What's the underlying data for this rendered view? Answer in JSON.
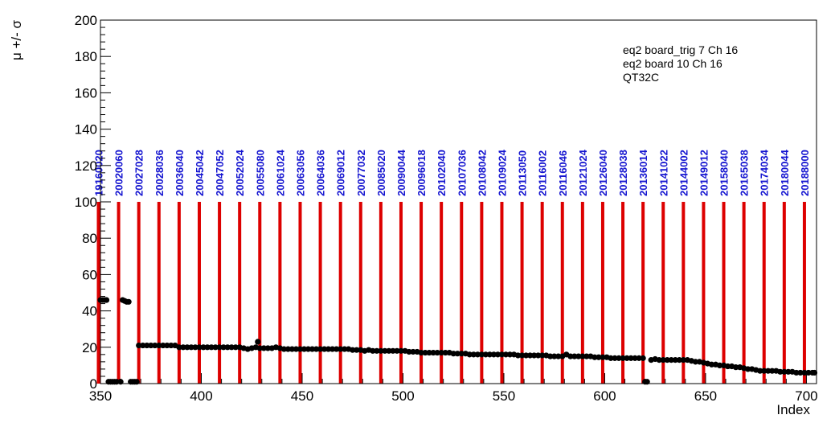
{
  "chart_data": {
    "type": "scatter",
    "title": "",
    "xlabel": "Index",
    "ylabel": "μ +/- σ",
    "xlim": [
      350,
      705
    ],
    "ylim": [
      0,
      200
    ],
    "x_ticks": [
      350,
      400,
      450,
      500,
      550,
      600,
      650,
      700
    ],
    "y_ticks": [
      0,
      20,
      40,
      60,
      80,
      100,
      120,
      140,
      160,
      180,
      200
    ],
    "grid": false,
    "legend_position": "top-right",
    "annotations": [
      "eq2 board_trig 7 Ch 16",
      "eq2 board 10 Ch 16",
      "QT32C"
    ],
    "colors": {
      "markers": "#000000",
      "run_lines": "#dd0000",
      "run_labels": "#1414d0"
    },
    "run_markers": {
      "line_top": 100,
      "runs": [
        {
          "x": 349,
          "label": "19160020"
        },
        {
          "x": 359,
          "label": "20020060"
        },
        {
          "x": 369,
          "label": "20027028"
        },
        {
          "x": 379,
          "label": "20028036"
        },
        {
          "x": 389,
          "label": "20036040"
        },
        {
          "x": 399,
          "label": "20045042"
        },
        {
          "x": 409,
          "label": "20047052"
        },
        {
          "x": 419,
          "label": "20052024"
        },
        {
          "x": 429,
          "label": "20055080"
        },
        {
          "x": 439,
          "label": "20061024"
        },
        {
          "x": 449,
          "label": "20063056"
        },
        {
          "x": 459,
          "label": "20064036"
        },
        {
          "x": 469,
          "label": "20069012"
        },
        {
          "x": 479,
          "label": "20077032"
        },
        {
          "x": 489,
          "label": "20085020"
        },
        {
          "x": 499,
          "label": "20090044"
        },
        {
          "x": 509,
          "label": "20096018"
        },
        {
          "x": 519,
          "label": "20102040"
        },
        {
          "x": 529,
          "label": "20107036"
        },
        {
          "x": 539,
          "label": "20108042"
        },
        {
          "x": 549,
          "label": "20109024"
        },
        {
          "x": 559,
          "label": "20113050"
        },
        {
          "x": 569,
          "label": "20116002"
        },
        {
          "x": 579,
          "label": "20116046"
        },
        {
          "x": 589,
          "label": "20121024"
        },
        {
          "x": 599,
          "label": "20126040"
        },
        {
          "x": 609,
          "label": "20128038"
        },
        {
          "x": 619,
          "label": "20136014"
        },
        {
          "x": 629,
          "label": "20141022"
        },
        {
          "x": 639,
          "label": "20144002"
        },
        {
          "x": 649,
          "label": "20149012"
        },
        {
          "x": 659,
          "label": "20158040"
        },
        {
          "x": 669,
          "label": "20165038"
        },
        {
          "x": 679,
          "label": "20174034"
        },
        {
          "x": 689,
          "label": "20180044"
        },
        {
          "x": 699,
          "label": "20188000"
        }
      ]
    },
    "series": [
      {
        "points": [
          [
            350,
            46
          ],
          [
            351,
            46
          ],
          [
            352,
            46
          ],
          [
            353,
            46
          ],
          [
            354,
            1
          ],
          [
            355,
            1
          ],
          [
            356,
            1
          ],
          [
            357,
            1
          ],
          [
            358,
            1
          ],
          [
            360,
            1
          ],
          [
            361,
            46
          ],
          [
            362,
            45.5
          ],
          [
            363,
            45
          ],
          [
            364,
            45
          ],
          [
            365,
            1
          ],
          [
            366,
            1
          ],
          [
            367,
            1
          ],
          [
            368,
            1
          ],
          [
            369,
            21
          ],
          [
            371,
            21
          ],
          [
            373,
            21
          ],
          [
            375,
            21
          ],
          [
            377,
            21
          ],
          [
            379,
            21
          ],
          [
            381,
            21
          ],
          [
            383,
            21
          ],
          [
            385,
            21
          ],
          [
            387,
            21
          ],
          [
            389,
            20
          ],
          [
            391,
            20
          ],
          [
            393,
            20
          ],
          [
            395,
            20
          ],
          [
            397,
            20
          ],
          [
            399,
            20
          ],
          [
            401,
            20
          ],
          [
            403,
            20
          ],
          [
            405,
            20
          ],
          [
            407,
            20
          ],
          [
            409,
            20
          ],
          [
            411,
            20
          ],
          [
            413,
            20
          ],
          [
            415,
            20
          ],
          [
            417,
            20
          ],
          [
            419,
            20
          ],
          [
            421,
            19.5
          ],
          [
            423,
            19
          ],
          [
            425,
            19.5
          ],
          [
            427,
            20
          ],
          [
            428,
            23
          ],
          [
            429,
            19.5
          ],
          [
            431,
            19.5
          ],
          [
            433,
            19.5
          ],
          [
            435,
            19.5
          ],
          [
            437,
            20
          ],
          [
            439,
            19.5
          ],
          [
            441,
            19
          ],
          [
            443,
            19
          ],
          [
            445,
            19
          ],
          [
            447,
            19
          ],
          [
            449,
            19
          ],
          [
            451,
            19
          ],
          [
            453,
            19
          ],
          [
            455,
            19
          ],
          [
            457,
            19
          ],
          [
            459,
            19
          ],
          [
            461,
            19
          ],
          [
            463,
            19
          ],
          [
            465,
            19
          ],
          [
            467,
            19
          ],
          [
            469,
            19
          ],
          [
            471,
            19
          ],
          [
            473,
            19
          ],
          [
            475,
            18.5
          ],
          [
            477,
            18.5
          ],
          [
            479,
            18.5
          ],
          [
            481,
            18
          ],
          [
            483,
            18.5
          ],
          [
            485,
            18
          ],
          [
            487,
            18
          ],
          [
            489,
            18
          ],
          [
            491,
            18
          ],
          [
            493,
            18
          ],
          [
            495,
            18
          ],
          [
            497,
            18
          ],
          [
            499,
            18
          ],
          [
            501,
            18
          ],
          [
            503,
            17.5
          ],
          [
            505,
            17.5
          ],
          [
            507,
            17.5
          ],
          [
            509,
            17
          ],
          [
            511,
            17
          ],
          [
            513,
            17
          ],
          [
            515,
            17
          ],
          [
            517,
            17
          ],
          [
            519,
            17
          ],
          [
            521,
            17
          ],
          [
            523,
            17
          ],
          [
            525,
            16.5
          ],
          [
            527,
            16.5
          ],
          [
            529,
            16.5
          ],
          [
            531,
            16.5
          ],
          [
            533,
            16
          ],
          [
            535,
            16
          ],
          [
            537,
            16
          ],
          [
            539,
            16
          ],
          [
            541,
            16
          ],
          [
            543,
            16
          ],
          [
            545,
            16
          ],
          [
            547,
            16
          ],
          [
            549,
            16
          ],
          [
            551,
            16
          ],
          [
            553,
            16
          ],
          [
            555,
            16
          ],
          [
            557,
            15.5
          ],
          [
            559,
            15.5
          ],
          [
            561,
            15.5
          ],
          [
            563,
            15.5
          ],
          [
            565,
            15.5
          ],
          [
            567,
            15.5
          ],
          [
            569,
            15.5
          ],
          [
            571,
            15.5
          ],
          [
            573,
            15
          ],
          [
            575,
            15
          ],
          [
            577,
            15
          ],
          [
            579,
            15
          ],
          [
            581,
            16
          ],
          [
            583,
            15
          ],
          [
            585,
            15
          ],
          [
            587,
            15
          ],
          [
            589,
            15
          ],
          [
            591,
            15
          ],
          [
            593,
            15
          ],
          [
            595,
            14.5
          ],
          [
            597,
            14.5
          ],
          [
            599,
            14.5
          ],
          [
            601,
            14.5
          ],
          [
            603,
            14
          ],
          [
            605,
            14
          ],
          [
            607,
            14
          ],
          [
            609,
            14
          ],
          [
            611,
            14
          ],
          [
            613,
            14
          ],
          [
            615,
            14
          ],
          [
            617,
            14
          ],
          [
            619,
            14
          ],
          [
            620,
            1
          ],
          [
            621,
            1
          ],
          [
            623,
            13
          ],
          [
            625,
            13.5
          ],
          [
            627,
            13
          ],
          [
            629,
            13
          ],
          [
            631,
            13
          ],
          [
            633,
            13
          ],
          [
            635,
            13
          ],
          [
            637,
            13
          ],
          [
            639,
            13
          ],
          [
            641,
            13
          ],
          [
            643,
            12.5
          ],
          [
            645,
            12
          ],
          [
            647,
            12
          ],
          [
            649,
            11.5
          ],
          [
            651,
            11
          ],
          [
            653,
            10.5
          ],
          [
            655,
            10.5
          ],
          [
            657,
            10
          ],
          [
            659,
            10
          ],
          [
            661,
            9.5
          ],
          [
            663,
            9.5
          ],
          [
            665,
            9
          ],
          [
            667,
            9
          ],
          [
            669,
            8.5
          ],
          [
            671,
            8
          ],
          [
            673,
            8
          ],
          [
            675,
            7.5
          ],
          [
            677,
            7
          ],
          [
            679,
            7
          ],
          [
            681,
            7
          ],
          [
            683,
            7
          ],
          [
            685,
            7
          ],
          [
            687,
            6.5
          ],
          [
            689,
            6.5
          ],
          [
            691,
            6.5
          ],
          [
            693,
            6.5
          ],
          [
            695,
            6
          ],
          [
            697,
            6
          ],
          [
            699,
            6
          ],
          [
            701,
            6
          ],
          [
            703,
            6
          ],
          [
            704,
            6
          ]
        ]
      }
    ]
  }
}
